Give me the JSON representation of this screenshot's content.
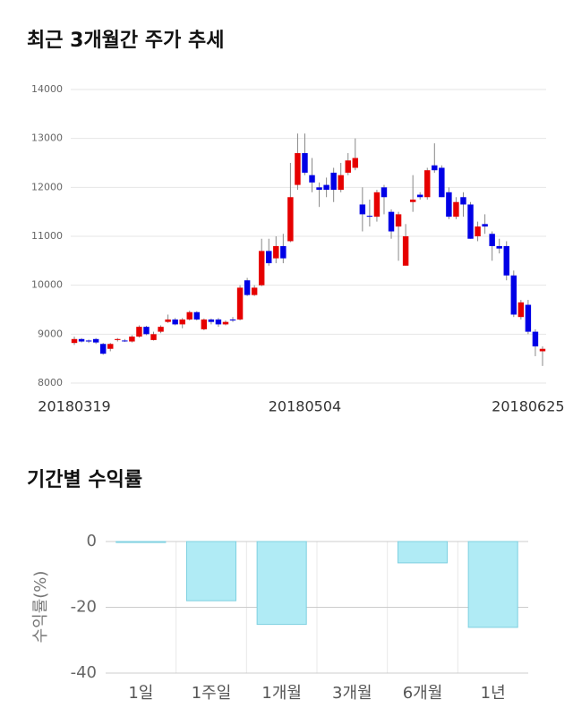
{
  "chart_data": [
    {
      "type": "candlestick",
      "title": "최근 3개월간 주가 추세",
      "categories": [
        "20180319",
        null,
        null,
        null,
        null,
        null,
        null,
        null,
        null,
        null,
        null,
        null,
        null,
        null,
        null,
        null,
        null,
        null,
        null,
        null,
        null,
        null,
        null,
        null,
        null,
        null,
        null,
        null,
        null,
        null,
        null,
        null,
        "20180504",
        null,
        null,
        null,
        null,
        null,
        null,
        null,
        null,
        null,
        null,
        null,
        null,
        null,
        null,
        null,
        null,
        null,
        null,
        null,
        null,
        null,
        null,
        null,
        null,
        null,
        null,
        null,
        null,
        null,
        null,
        "20180625",
        null,
        null
      ],
      "open": [
        8820,
        8900,
        8870,
        8900,
        8800,
        8700,
        8880,
        8870,
        8850,
        8950,
        9150,
        8880,
        9050,
        9250,
        9300,
        9200,
        9300,
        9450,
        9100,
        9300,
        9300,
        9200,
        9300,
        9300,
        10100,
        9800,
        10000,
        10700,
        10550,
        10800,
        10900,
        12050,
        12700,
        12250,
        12000,
        12050,
        12300,
        11950,
        12300,
        12400,
        11650,
        11420,
        11400,
        12000,
        11500,
        11200,
        10400,
        11700,
        11850,
        11800,
        12450,
        12400,
        11900,
        11400,
        11800,
        11650,
        11000,
        11250,
        11050,
        10800,
        10800,
        10200,
        9350,
        9600,
        9050,
        8650
      ],
      "high": [
        8950,
        8920,
        8890,
        8920,
        8820,
        8820,
        8920,
        8900,
        8980,
        9180,
        9170,
        9050,
        9180,
        9400,
        9330,
        9330,
        9480,
        9470,
        9320,
        9320,
        9330,
        9280,
        9350,
        10000,
        10150,
        10000,
        10950,
        10950,
        11000,
        11050,
        12500,
        13100,
        13100,
        12600,
        12100,
        12200,
        12400,
        12500,
        12700,
        13000,
        12000,
        11750,
        11950,
        12050,
        11550,
        11500,
        11250,
        12250,
        11900,
        12400,
        12900,
        12450,
        12000,
        11800,
        11900,
        11700,
        11300,
        11450,
        11100,
        10950,
        10900,
        10300,
        9700,
        9700,
        9100,
        8750
      ],
      "low": [
        8780,
        8830,
        8820,
        8800,
        8580,
        8650,
        8850,
        8840,
        8830,
        8930,
        8980,
        8870,
        9020,
        9230,
        9180,
        9120,
        9280,
        9280,
        9080,
        9200,
        9150,
        9180,
        9250,
        9280,
        9780,
        9780,
        9980,
        10400,
        10450,
        10450,
        10880,
        11950,
        12250,
        11900,
        11600,
        11800,
        11700,
        11900,
        12250,
        12350,
        11100,
        11200,
        11300,
        11450,
        10950,
        10500,
        10400,
        11500,
        11750,
        11750,
        12300,
        11800,
        11350,
        11350,
        11400,
        10950,
        10900,
        11050,
        10500,
        10650,
        10100,
        9350,
        9300,
        9000,
        8550,
        8350
      ],
      "close": [
        8900,
        8850,
        8850,
        8830,
        8600,
        8800,
        8900,
        8860,
        8950,
        9150,
        9000,
        9000,
        9150,
        9300,
        9200,
        9300,
        9450,
        9300,
        9300,
        9250,
        9200,
        9250,
        9280,
        9950,
        9800,
        9950,
        10700,
        10450,
        10800,
        10550,
        11800,
        12700,
        12300,
        12100,
        11950,
        11950,
        11950,
        12250,
        12550,
        12600,
        11450,
        11400,
        11900,
        11800,
        11100,
        11450,
        11000,
        11750,
        11800,
        12350,
        12350,
        11800,
        11400,
        11700,
        11650,
        10950,
        11200,
        11200,
        10800,
        10750,
        10200,
        9400,
        9650,
        9050,
        8750,
        8700
      ],
      "up_color": "#e60000",
      "down_color": "#0000e6",
      "ylim": [
        8000,
        14000
      ],
      "yticks": [
        8000,
        9000,
        10000,
        11000,
        12000,
        13000,
        14000
      ],
      "grid": true
    },
    {
      "type": "bar",
      "title": "기간별 수익률",
      "y_label": "수익률(%)",
      "categories": [
        "1일",
        "1주일",
        "1개월",
        "3개월",
        "6개월",
        "1년"
      ],
      "values": [
        -0.3,
        -18,
        -25.2,
        null,
        -6.5,
        -26.1
      ],
      "color": "#b0ebf5",
      "edge_color": "#7fd0e0",
      "ylim": [
        -40,
        0
      ],
      "yticks": [
        -40,
        -20,
        0
      ],
      "grid": true
    }
  ]
}
